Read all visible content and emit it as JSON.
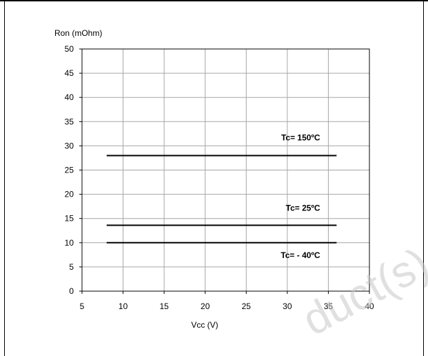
{
  "chart_data": {
    "type": "line",
    "ylabel": "Ron (mOhm)",
    "xlabel": "Vcc (V)",
    "xlim": [
      5,
      40
    ],
    "ylim": [
      0,
      50
    ],
    "x_ticks": [
      5,
      10,
      15,
      20,
      25,
      30,
      35,
      40
    ],
    "y_ticks": [
      0,
      5,
      10,
      15,
      20,
      25,
      30,
      35,
      40,
      45,
      50
    ],
    "grid": true,
    "series": [
      {
        "name": "Tc= 150ºC",
        "x": [
          8,
          36
        ],
        "y": [
          28,
          28
        ]
      },
      {
        "name": "Tc= 25ºC",
        "x": [
          8,
          36
        ],
        "y": [
          13.6,
          13.6
        ]
      },
      {
        "name": "Tc= - 40ºC",
        "x": [
          8,
          36
        ],
        "y": [
          10,
          10
        ]
      }
    ]
  },
  "watermark": "duct(s)"
}
